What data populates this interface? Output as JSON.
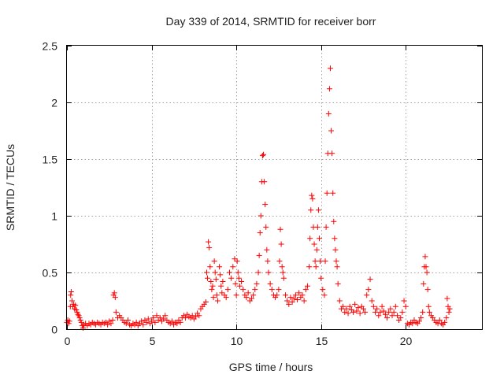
{
  "chart_data": {
    "type": "scatter",
    "title": "Day 339 of 2014, SRMTID for receiver borr",
    "xlabel": "GPS time / hours",
    "ylabel": "SRMTID / TECUs",
    "xlim": [
      0,
      24.5
    ],
    "ylim": [
      0,
      2.5
    ],
    "x_ticks": [
      0,
      5,
      10,
      15,
      20
    ],
    "x_tick_labels": [
      "0",
      "5",
      "10",
      "15",
      "20"
    ],
    "y_ticks": [
      0,
      0.5,
      1,
      1.5,
      2,
      2.5
    ],
    "y_tick_labels": [
      "0",
      "0.5",
      "1",
      "1.5",
      "2",
      "2.5"
    ],
    "grid": true,
    "marker": "plus",
    "color": "#ff0000",
    "series": [
      {
        "name": "SRMTID",
        "points": [
          [
            0.0,
            0.06
          ],
          [
            0.05,
            0.08
          ],
          [
            0.1,
            0.05
          ],
          [
            0.15,
            0.07
          ],
          [
            0.2,
            0.2
          ],
          [
            0.22,
            0.3
          ],
          [
            0.25,
            0.33
          ],
          [
            0.3,
            0.25
          ],
          [
            0.35,
            0.2
          ],
          [
            0.4,
            0.22
          ],
          [
            0.45,
            0.18
          ],
          [
            0.5,
            0.21
          ],
          [
            0.55,
            0.17
          ],
          [
            0.6,
            0.15
          ],
          [
            0.65,
            0.13
          ],
          [
            0.7,
            0.12
          ],
          [
            0.75,
            0.1
          ],
          [
            0.8,
            0.08
          ],
          [
            0.85,
            0.06
          ],
          [
            0.9,
            0.03
          ],
          [
            0.95,
            0.01
          ],
          [
            1.0,
            0.04
          ],
          [
            1.1,
            0.05
          ],
          [
            1.2,
            0.03
          ],
          [
            1.3,
            0.05
          ],
          [
            1.4,
            0.04
          ],
          [
            1.5,
            0.06
          ],
          [
            1.6,
            0.05
          ],
          [
            1.7,
            0.04
          ],
          [
            1.8,
            0.06
          ],
          [
            1.9,
            0.05
          ],
          [
            2.0,
            0.04
          ],
          [
            2.1,
            0.06
          ],
          [
            2.2,
            0.05
          ],
          [
            2.3,
            0.06
          ],
          [
            2.4,
            0.04
          ],
          [
            2.5,
            0.07
          ],
          [
            2.6,
            0.05
          ],
          [
            2.7,
            0.08
          ],
          [
            2.75,
            0.3
          ],
          [
            2.8,
            0.32
          ],
          [
            2.85,
            0.28
          ],
          [
            2.9,
            0.15
          ],
          [
            3.0,
            0.1
          ],
          [
            3.1,
            0.12
          ],
          [
            3.2,
            0.1
          ],
          [
            3.3,
            0.08
          ],
          [
            3.4,
            0.06
          ],
          [
            3.5,
            0.05
          ],
          [
            3.6,
            0.08
          ],
          [
            3.7,
            0.04
          ],
          [
            3.8,
            0.03
          ],
          [
            3.9,
            0.05
          ],
          [
            4.0,
            0.04
          ],
          [
            4.1,
            0.06
          ],
          [
            4.2,
            0.03
          ],
          [
            4.3,
            0.05
          ],
          [
            4.4,
            0.07
          ],
          [
            4.5,
            0.04
          ],
          [
            4.6,
            0.08
          ],
          [
            4.7,
            0.06
          ],
          [
            4.8,
            0.09
          ],
          [
            4.9,
            0.05
          ],
          [
            5.0,
            0.07
          ],
          [
            5.1,
            0.1
          ],
          [
            5.2,
            0.06
          ],
          [
            5.3,
            0.12
          ],
          [
            5.4,
            0.08
          ],
          [
            5.5,
            0.1
          ],
          [
            5.6,
            0.07
          ],
          [
            5.7,
            0.09
          ],
          [
            5.8,
            0.12
          ],
          [
            5.9,
            0.08
          ],
          [
            6.0,
            0.06
          ],
          [
            6.1,
            0.05
          ],
          [
            6.2,
            0.07
          ],
          [
            6.3,
            0.04
          ],
          [
            6.4,
            0.06
          ],
          [
            6.5,
            0.05
          ],
          [
            6.6,
            0.08
          ],
          [
            6.7,
            0.06
          ],
          [
            6.8,
            0.1
          ],
          [
            6.9,
            0.12
          ],
          [
            7.0,
            0.1
          ],
          [
            7.1,
            0.13
          ],
          [
            7.2,
            0.11
          ],
          [
            7.3,
            0.1
          ],
          [
            7.4,
            0.12
          ],
          [
            7.5,
            0.09
          ],
          [
            7.6,
            0.11
          ],
          [
            7.7,
            0.14
          ],
          [
            7.8,
            0.12
          ],
          [
            7.9,
            0.18
          ],
          [
            8.0,
            0.2
          ],
          [
            8.1,
            0.22
          ],
          [
            8.2,
            0.24
          ],
          [
            8.25,
            0.5
          ],
          [
            8.3,
            0.45
          ],
          [
            8.35,
            0.77
          ],
          [
            8.4,
            0.72
          ],
          [
            8.45,
            0.55
          ],
          [
            8.5,
            0.42
          ],
          [
            8.55,
            0.35
          ],
          [
            8.6,
            0.38
          ],
          [
            8.65,
            0.28
          ],
          [
            8.7,
            0.6
          ],
          [
            8.75,
            0.5
          ],
          [
            8.8,
            0.44
          ],
          [
            8.85,
            0.3
          ],
          [
            8.9,
            0.25
          ],
          [
            9.0,
            0.55
          ],
          [
            9.05,
            0.48
          ],
          [
            9.1,
            0.38
          ],
          [
            9.15,
            0.32
          ],
          [
            9.2,
            0.42
          ],
          [
            9.3,
            0.3
          ],
          [
            9.4,
            0.28
          ],
          [
            9.5,
            0.35
          ],
          [
            9.6,
            0.5
          ],
          [
            9.7,
            0.45
          ],
          [
            9.8,
            0.55
          ],
          [
            9.9,
            0.62
          ],
          [
            9.95,
            0.4
          ],
          [
            10.0,
            0.3
          ],
          [
            10.05,
            0.6
          ],
          [
            10.1,
            0.5
          ],
          [
            10.15,
            0.45
          ],
          [
            10.2,
            0.38
          ],
          [
            10.3,
            0.42
          ],
          [
            10.4,
            0.35
          ],
          [
            10.5,
            0.3
          ],
          [
            10.6,
            0.28
          ],
          [
            10.7,
            0.32
          ],
          [
            10.8,
            0.25
          ],
          [
            10.9,
            0.27
          ],
          [
            11.0,
            0.3
          ],
          [
            11.1,
            0.35
          ],
          [
            11.2,
            0.4
          ],
          [
            11.3,
            0.5
          ],
          [
            11.35,
            0.65
          ],
          [
            11.4,
            0.85
          ],
          [
            11.45,
            1.0
          ],
          [
            11.5,
            1.3
          ],
          [
            11.55,
            1.53
          ],
          [
            11.6,
            1.54
          ],
          [
            11.65,
            1.3
          ],
          [
            11.7,
            1.1
          ],
          [
            11.75,
            0.9
          ],
          [
            11.8,
            0.7
          ],
          [
            11.85,
            0.6
          ],
          [
            11.9,
            0.5
          ],
          [
            12.0,
            0.4
          ],
          [
            12.1,
            0.35
          ],
          [
            12.2,
            0.3
          ],
          [
            12.3,
            0.28
          ],
          [
            12.4,
            0.3
          ],
          [
            12.5,
            0.35
          ],
          [
            12.55,
            0.6
          ],
          [
            12.6,
            0.88
          ],
          [
            12.65,
            0.75
          ],
          [
            12.7,
            0.55
          ],
          [
            12.75,
            0.5
          ],
          [
            12.8,
            0.45
          ],
          [
            12.9,
            0.3
          ],
          [
            13.0,
            0.25
          ],
          [
            13.1,
            0.22
          ],
          [
            13.2,
            0.28
          ],
          [
            13.3,
            0.24
          ],
          [
            13.4,
            0.27
          ],
          [
            13.5,
            0.3
          ],
          [
            13.6,
            0.26
          ],
          [
            13.7,
            0.32
          ],
          [
            13.8,
            0.28
          ],
          [
            13.9,
            0.3
          ],
          [
            14.0,
            0.25
          ],
          [
            14.1,
            0.35
          ],
          [
            14.2,
            0.38
          ],
          [
            14.3,
            0.55
          ],
          [
            14.35,
            0.8
          ],
          [
            14.4,
            1.05
          ],
          [
            14.45,
            1.18
          ],
          [
            14.5,
            1.15
          ],
          [
            14.55,
            0.9
          ],
          [
            14.6,
            0.75
          ],
          [
            14.65,
            0.6
          ],
          [
            14.7,
            0.55
          ],
          [
            14.75,
            0.7
          ],
          [
            14.8,
            0.9
          ],
          [
            14.85,
            1.05
          ],
          [
            14.9,
            0.8
          ],
          [
            14.95,
            0.6
          ],
          [
            15.0,
            0.45
          ],
          [
            15.1,
            0.35
          ],
          [
            15.2,
            0.3
          ],
          [
            15.25,
            0.6
          ],
          [
            15.3,
            0.9
          ],
          [
            15.35,
            1.2
          ],
          [
            15.4,
            1.55
          ],
          [
            15.45,
            1.9
          ],
          [
            15.5,
            2.12
          ],
          [
            15.55,
            2.3
          ],
          [
            15.6,
            1.75
          ],
          [
            15.65,
            1.55
          ],
          [
            15.7,
            1.2
          ],
          [
            15.75,
            0.95
          ],
          [
            15.8,
            0.8
          ],
          [
            15.85,
            0.7
          ],
          [
            15.9,
            0.6
          ],
          [
            15.95,
            0.55
          ],
          [
            16.0,
            0.4
          ],
          [
            16.1,
            0.25
          ],
          [
            16.2,
            0.18
          ],
          [
            16.3,
            0.2
          ],
          [
            16.4,
            0.15
          ],
          [
            16.5,
            0.18
          ],
          [
            16.6,
            0.14
          ],
          [
            16.7,
            0.2
          ],
          [
            16.8,
            0.17
          ],
          [
            16.9,
            0.15
          ],
          [
            17.0,
            0.22
          ],
          [
            17.1,
            0.16
          ],
          [
            17.2,
            0.19
          ],
          [
            17.3,
            0.14
          ],
          [
            17.4,
            0.2
          ],
          [
            17.5,
            0.18
          ],
          [
            17.6,
            0.15
          ],
          [
            17.7,
            0.3
          ],
          [
            17.8,
            0.35
          ],
          [
            17.9,
            0.44
          ],
          [
            18.0,
            0.25
          ],
          [
            18.1,
            0.2
          ],
          [
            18.2,
            0.15
          ],
          [
            18.3,
            0.18
          ],
          [
            18.4,
            0.12
          ],
          [
            18.5,
            0.15
          ],
          [
            18.6,
            0.2
          ],
          [
            18.7,
            0.16
          ],
          [
            18.8,
            0.13
          ],
          [
            18.9,
            0.1
          ],
          [
            19.0,
            0.15
          ],
          [
            19.1,
            0.18
          ],
          [
            19.2,
            0.12
          ],
          [
            19.3,
            0.15
          ],
          [
            19.4,
            0.2
          ],
          [
            19.5,
            0.12
          ],
          [
            19.6,
            0.08
          ],
          [
            19.7,
            0.1
          ],
          [
            19.8,
            0.15
          ],
          [
            19.9,
            0.25
          ],
          [
            20.0,
            0.2
          ],
          [
            20.1,
            0.05
          ],
          [
            20.2,
            0.04
          ],
          [
            20.3,
            0.06
          ],
          [
            20.4,
            0.05
          ],
          [
            20.5,
            0.08
          ],
          [
            20.6,
            0.06
          ],
          [
            20.7,
            0.05
          ],
          [
            20.8,
            0.07
          ],
          [
            20.9,
            0.1
          ],
          [
            21.0,
            0.15
          ],
          [
            21.05,
            0.4
          ],
          [
            21.1,
            0.55
          ],
          [
            21.15,
            0.64
          ],
          [
            21.2,
            0.55
          ],
          [
            21.25,
            0.5
          ],
          [
            21.3,
            0.35
          ],
          [
            21.35,
            0.2
          ],
          [
            21.4,
            0.15
          ],
          [
            21.5,
            0.12
          ],
          [
            21.6,
            0.1
          ],
          [
            21.7,
            0.08
          ],
          [
            21.8,
            0.06
          ],
          [
            21.9,
            0.05
          ],
          [
            22.0,
            0.08
          ],
          [
            22.1,
            0.05
          ],
          [
            22.2,
            0.04
          ],
          [
            22.3,
            0.06
          ],
          [
            22.4,
            0.1
          ],
          [
            22.45,
            0.27
          ],
          [
            22.5,
            0.2
          ],
          [
            22.55,
            0.15
          ],
          [
            22.6,
            0.18
          ]
        ]
      }
    ]
  }
}
